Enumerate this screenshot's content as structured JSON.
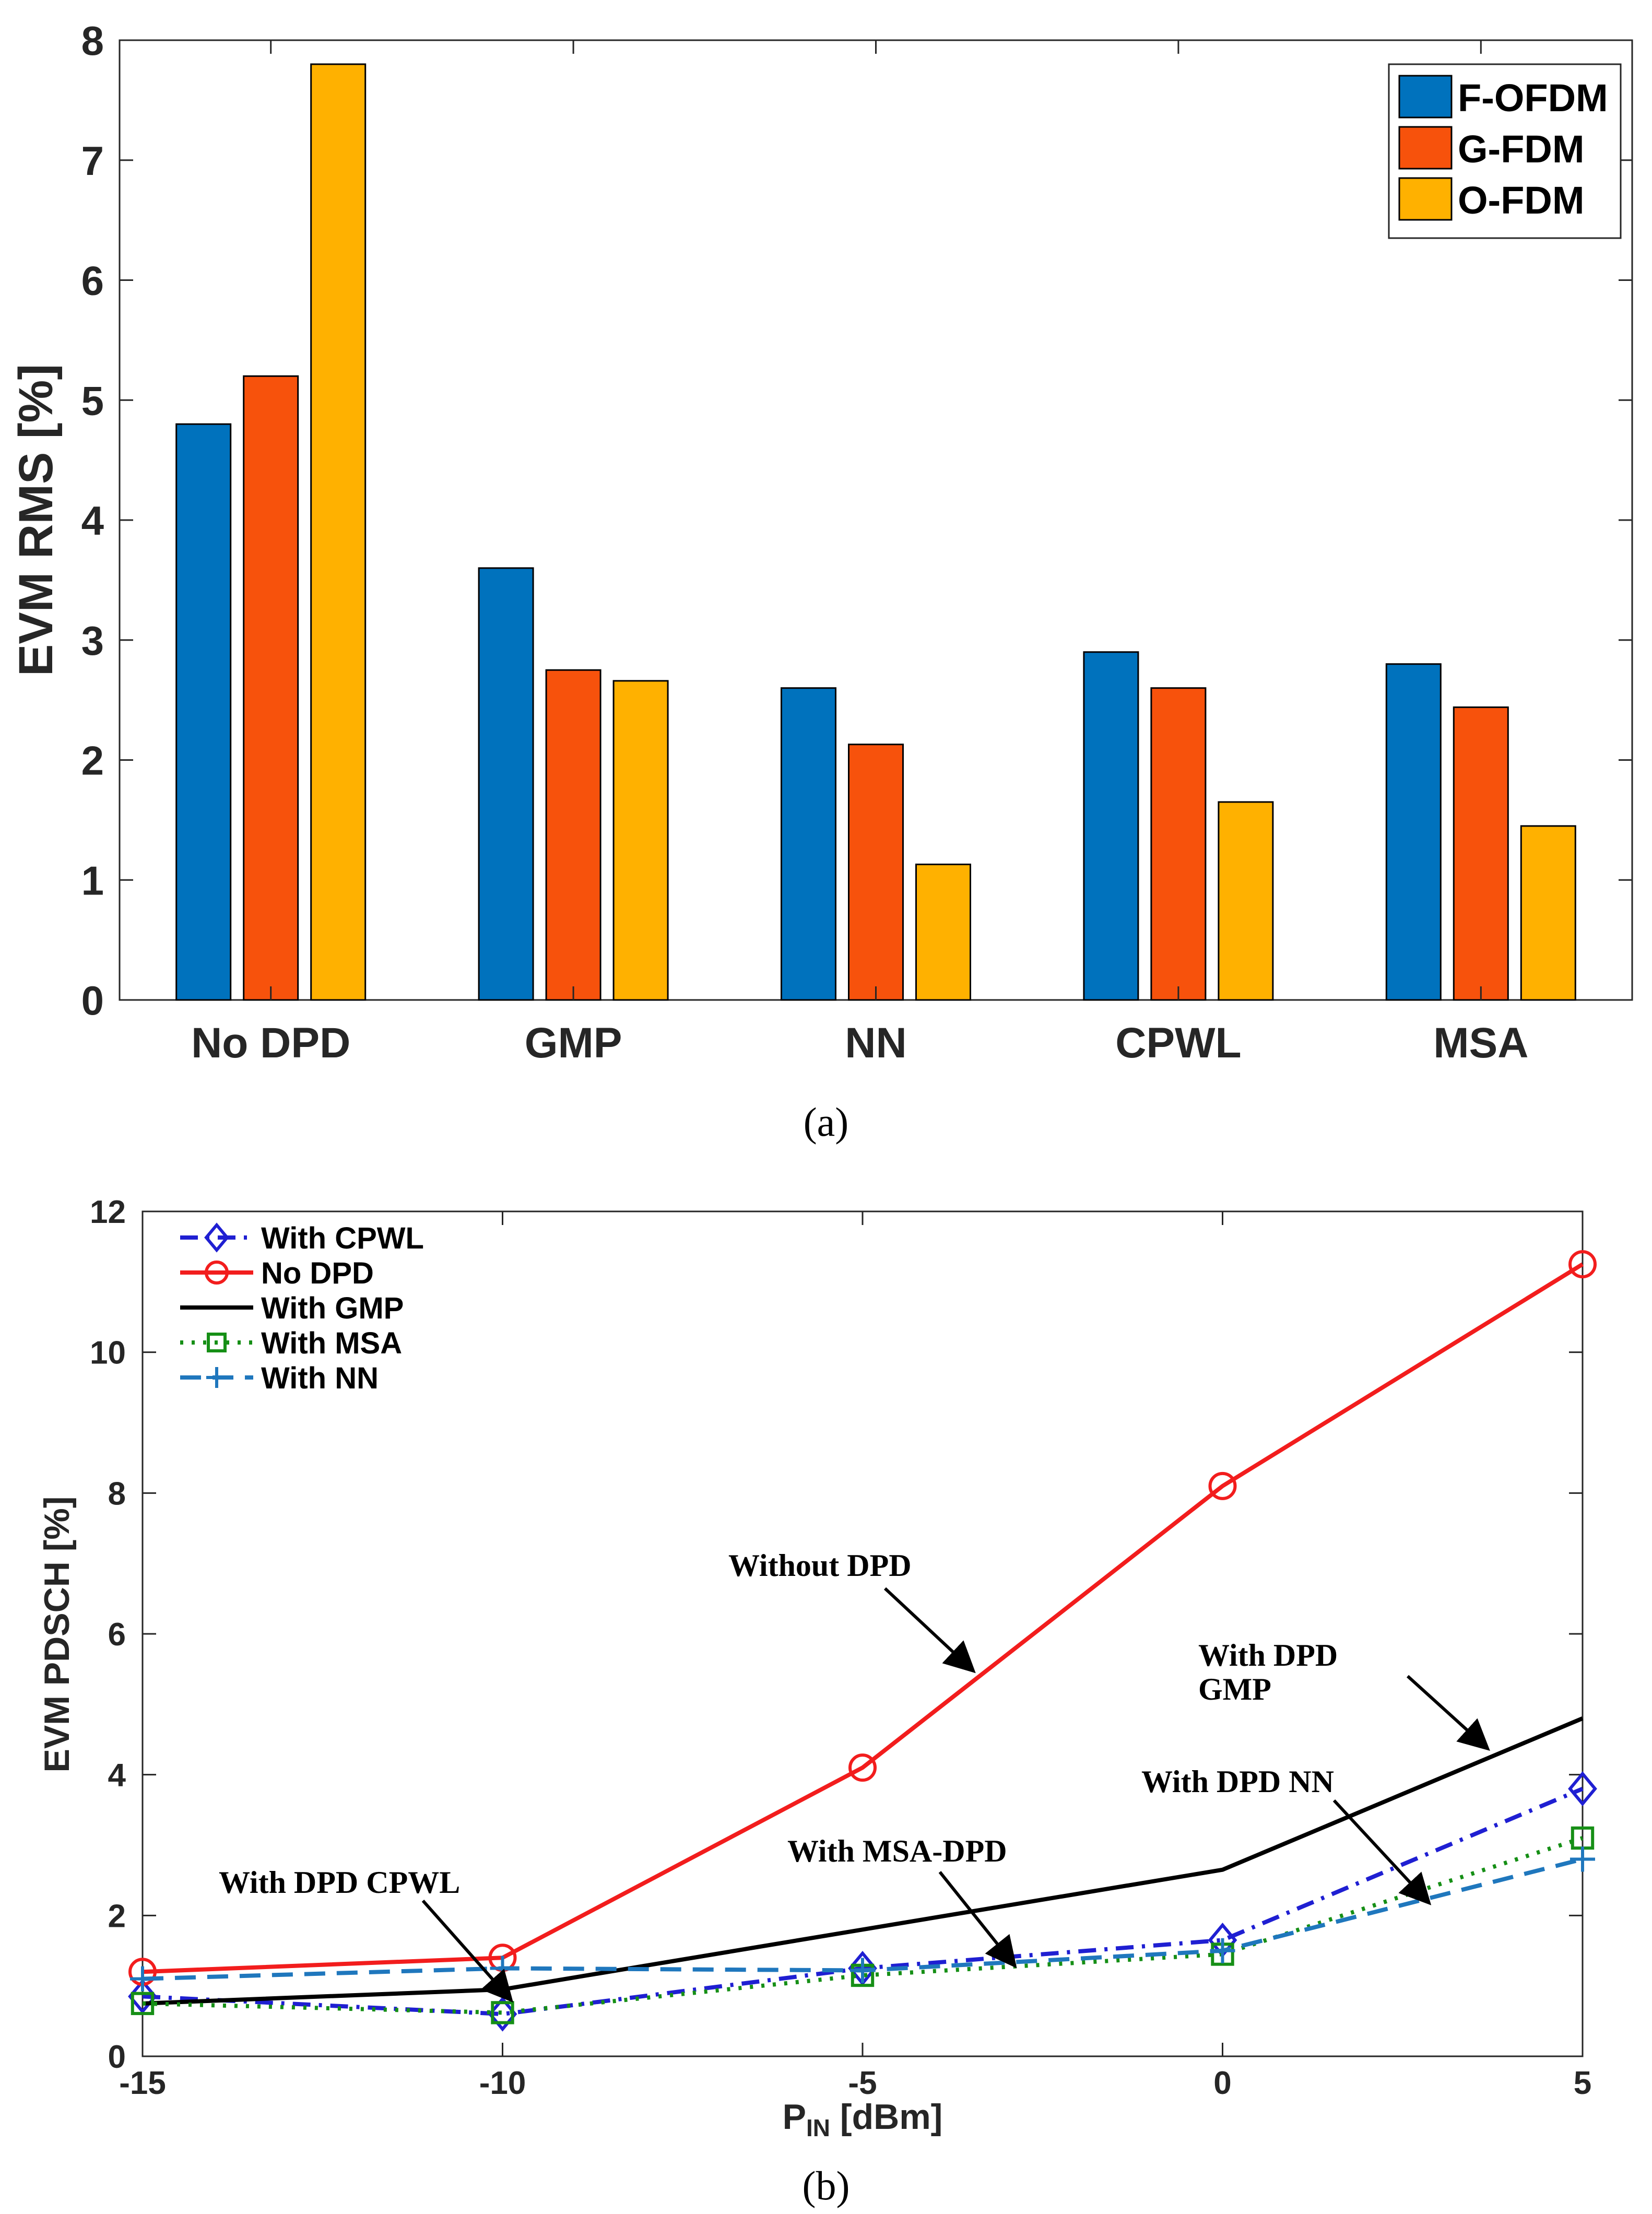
{
  "chart_data": [
    {
      "type": "bar",
      "panel": "(a)",
      "title": "",
      "xlabel": "",
      "ylabel": "EVM RMS [%]",
      "ylim": [
        0,
        8
      ],
      "yticks": [
        0,
        1,
        2,
        3,
        4,
        5,
        6,
        7,
        8
      ],
      "categories": [
        "No DPD",
        "GMP",
        "NN",
        "CPWL",
        "MSA"
      ],
      "series": [
        {
          "name": "F-OFDM",
          "color": "#0072BD",
          "values": [
            4.8,
            3.6,
            2.6,
            2.9,
            2.8
          ]
        },
        {
          "name": "G-FDM",
          "color": "#F7520C",
          "values": [
            5.2,
            2.75,
            2.13,
            2.6,
            2.44
          ]
        },
        {
          "name": "O-FDM",
          "color": "#FFB100",
          "values": [
            7.8,
            2.66,
            1.13,
            1.65,
            1.45
          ]
        }
      ],
      "legend": "top-right",
      "caption": "(a)"
    },
    {
      "type": "line",
      "panel": "(b)",
      "title": "",
      "xlabel_main": "P",
      "xlabel_sub": "IN",
      "xlabel_rest": " [dBm]",
      "ylabel": "EVM PDSCH [%]",
      "xlim": [
        -15,
        5
      ],
      "ylim": [
        0,
        12
      ],
      "x": [
        -15,
        -10,
        -5,
        0,
        5
      ],
      "xticks": [
        -15,
        -10,
        -5,
        0,
        5
      ],
      "yticks": [
        0,
        2,
        4,
        6,
        8,
        10,
        12
      ],
      "series": [
        {
          "name": "With CPWL",
          "color": "#1F1FD2",
          "dash": "dashdot",
          "marker": "diamond",
          "values": [
            0.85,
            0.6,
            1.25,
            1.65,
            3.8
          ]
        },
        {
          "name": "No DPD",
          "color": "#F21D1D",
          "dash": "solid",
          "marker": "circle",
          "values": [
            1.2,
            1.4,
            4.1,
            8.1,
            11.25
          ]
        },
        {
          "name": "With GMP",
          "color": "#000000",
          "dash": "solid",
          "marker": "none",
          "values": [
            0.75,
            0.95,
            1.8,
            2.65,
            4.8
          ]
        },
        {
          "name": "With MSA",
          "color": "#168F16",
          "dash": "dotted",
          "marker": "square",
          "values": [
            0.75,
            0.62,
            1.15,
            1.45,
            3.1
          ]
        },
        {
          "name": "With NN",
          "color": "#1F77BD",
          "dash": "dashed",
          "marker": "plus",
          "values": [
            1.1,
            1.25,
            1.22,
            1.5,
            2.8
          ]
        }
      ],
      "legend": "top-left",
      "annotations": [
        {
          "text": "Without DPD"
        },
        {
          "text": "With DPD"
        },
        {
          "text": "GMP"
        },
        {
          "text": "With DPD NN"
        },
        {
          "text": "With MSA-DPD"
        },
        {
          "text": "With DPD CPWL"
        }
      ],
      "caption": "(b)"
    }
  ]
}
